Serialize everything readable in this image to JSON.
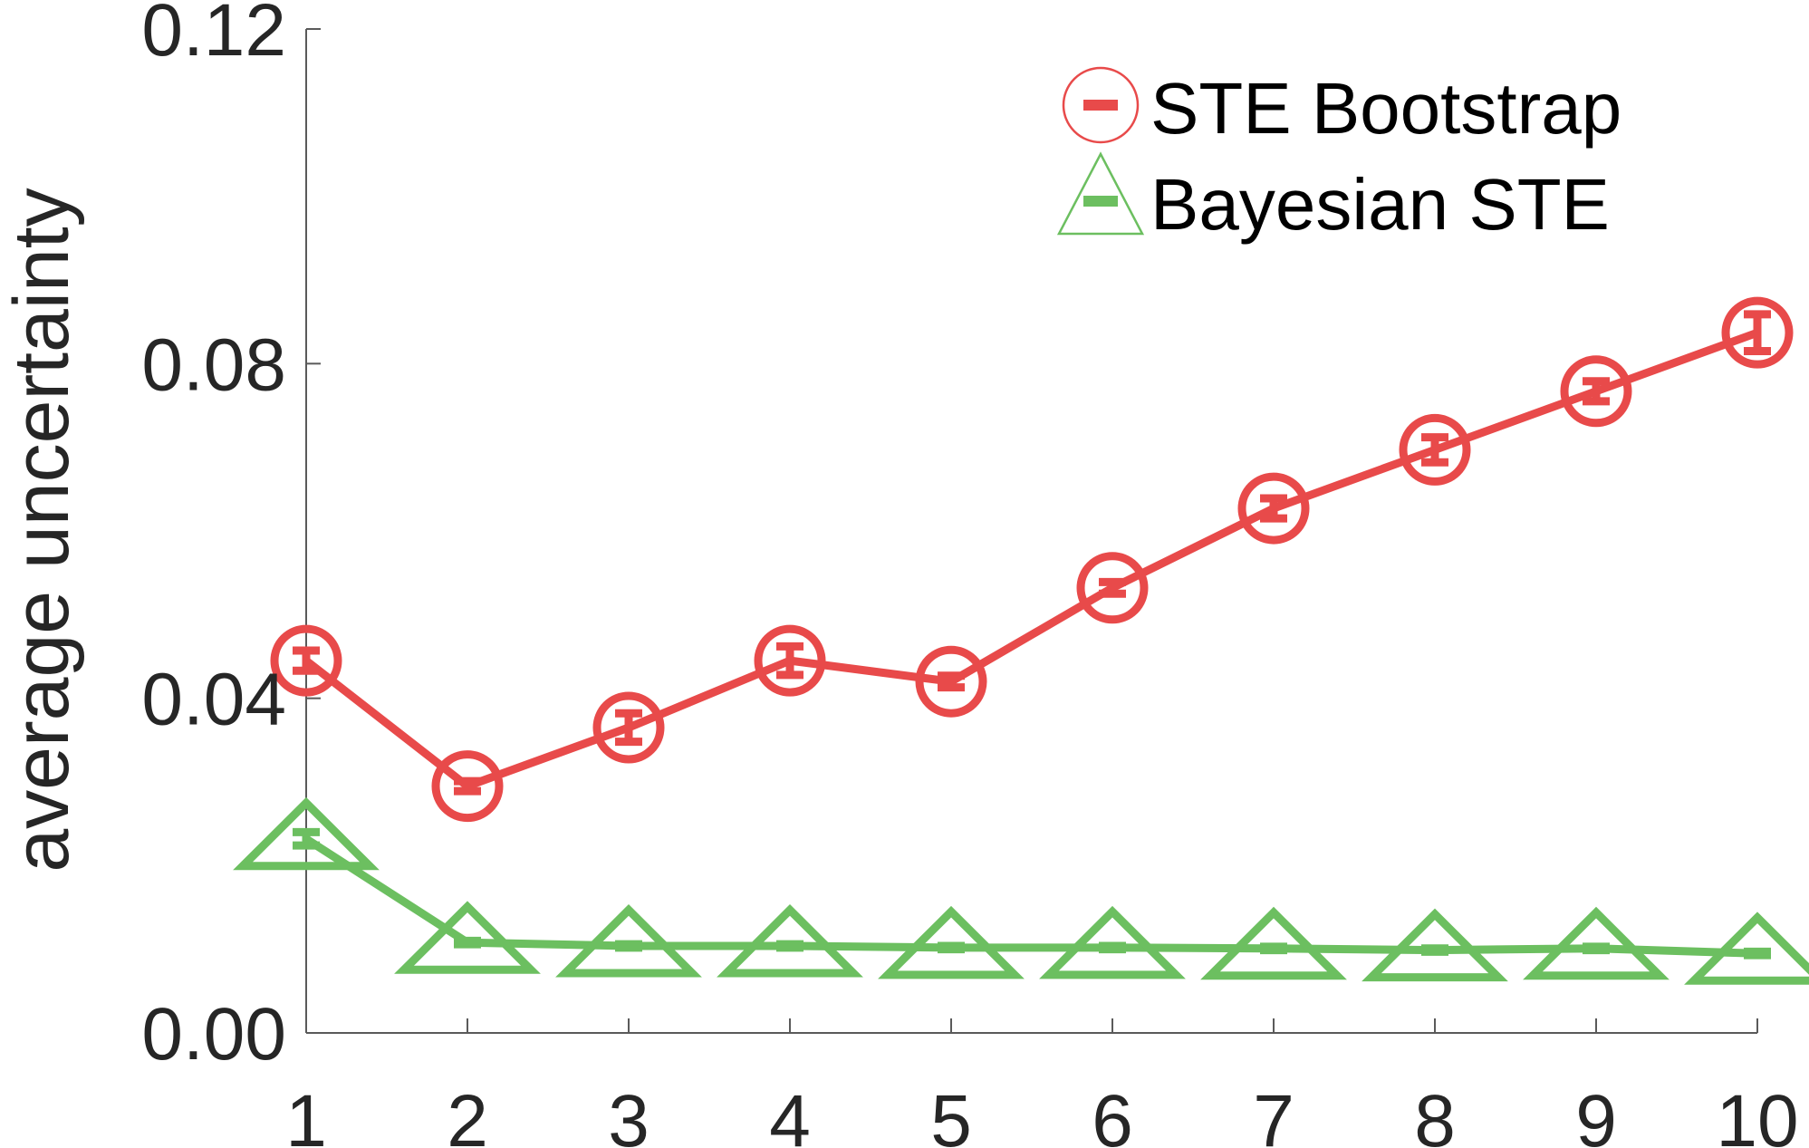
{
  "chart_data": {
    "type": "line",
    "title": "",
    "xlabel": "",
    "ylabel": "average uncertainty",
    "x": [
      1,
      2,
      3,
      4,
      5,
      6,
      7,
      8,
      9,
      10
    ],
    "xticks": [
      "1",
      "2",
      "3",
      "4",
      "5",
      "6",
      "7",
      "8",
      "9",
      "10"
    ],
    "yticks": [
      "0.00",
      "0.04",
      "0.08",
      "0.12"
    ],
    "ytick_values": [
      0.0,
      0.04,
      0.08,
      0.12
    ],
    "xlim": [
      1,
      10
    ],
    "ylim": [
      0,
      0.12
    ],
    "grid": false,
    "legend_position": "top-right",
    "series": [
      {
        "name": "STE Bootstrap",
        "marker": "circle",
        "color": "#e84a4a",
        "values": [
          0.0445,
          0.0295,
          0.0365,
          0.0445,
          0.042,
          0.0532,
          0.0627,
          0.0697,
          0.0767,
          0.0837
        ],
        "errors": [
          0.0012,
          0.0006,
          0.0017,
          0.0017,
          0.0007,
          0.0007,
          0.0012,
          0.0015,
          0.0012,
          0.0022
        ]
      },
      {
        "name": "Bayesian STE",
        "marker": "triangle",
        "color": "#6cbf60",
        "values": [
          0.0232,
          0.0108,
          0.0104,
          0.0104,
          0.0102,
          0.0102,
          0.0101,
          0.0099,
          0.0101,
          0.0095
        ],
        "errors": [
          0.0008,
          0.0002,
          0.0002,
          0.0002,
          0.0002,
          0.0002,
          0.0002,
          0.0002,
          0.0002,
          0.0002
        ]
      }
    ]
  }
}
